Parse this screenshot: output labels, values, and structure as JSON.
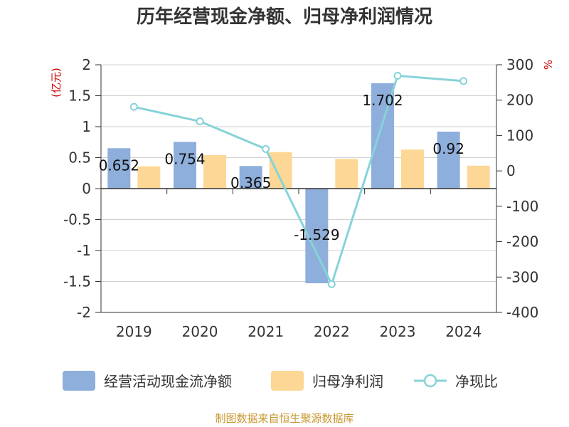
{
  "chart_data": {
    "type": "bar",
    "title": "历年经营现金净额、归母净利润情况",
    "left_unit": "(亿元)",
    "right_unit": "%",
    "categories": [
      "2019",
      "2020",
      "2021",
      "2022",
      "2023",
      "2024"
    ],
    "ylim": [
      -2,
      2
    ],
    "y_ticks": [
      "2",
      "1.5",
      "1",
      "0.5",
      "0",
      "-0.5",
      "-1",
      "-1.5",
      "-2"
    ],
    "y2lim": [
      -400,
      300
    ],
    "y2_ticks": [
      "300",
      "200",
      "100",
      "0",
      "-100",
      "-200",
      "-300",
      "-400"
    ],
    "series": [
      {
        "name": "经营活动现金流净额",
        "type": "bar",
        "axis": "left",
        "color": "#8eaedb",
        "values": [
          0.652,
          0.754,
          0.365,
          -1.529,
          1.702,
          0.92
        ],
        "labels": [
          "0.652",
          "0.754",
          "0.365",
          "-1.529",
          "1.702",
          "0.92"
        ]
      },
      {
        "name": "归母净利润",
        "type": "bar",
        "axis": "left",
        "color": "#fdd796",
        "values": [
          0.36,
          0.54,
          0.59,
          0.48,
          0.63,
          0.37
        ]
      },
      {
        "name": "净现比",
        "type": "line",
        "axis": "right",
        "color": "#86d3d8",
        "values": [
          181,
          140,
          62,
          -320,
          269,
          254
        ]
      }
    ],
    "legend_position": "bottom",
    "grid": true
  },
  "source": "制图数据来自恒生聚源数据库"
}
